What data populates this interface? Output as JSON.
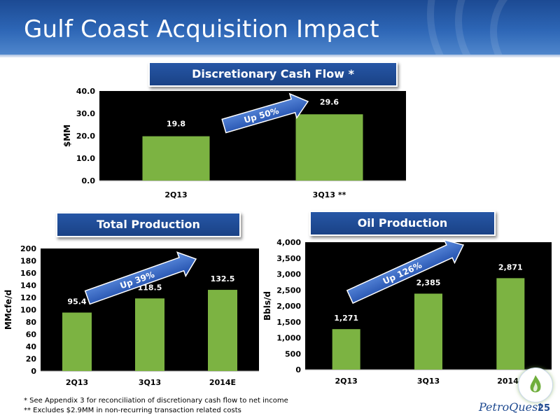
{
  "header": {
    "title": "Gulf Coast Acquisition Impact"
  },
  "sections": {
    "dcf_title": "Discretionary Cash Flow *",
    "total_title": "Total Production",
    "oil_title": "Oil Production"
  },
  "chart_data": [
    {
      "type": "bar",
      "title": "Discretionary Cash Flow *",
      "ylabel": "$MM",
      "categories": [
        "2Q13",
        "3Q13 **"
      ],
      "values": [
        19.8,
        29.6
      ],
      "value_labels": [
        "19.8",
        "29.6"
      ],
      "ylim": [
        0,
        40
      ],
      "yticks": [
        0,
        10,
        20,
        30,
        40
      ],
      "ytick_labels": [
        "0.0",
        "10.0",
        "20.0",
        "30.0",
        "40.0"
      ],
      "annotation": "Up 50%",
      "bar_color": "#7cb342",
      "grid": false
    },
    {
      "type": "bar",
      "title": "Total Production",
      "ylabel": "MMcfe/d",
      "categories": [
        "2Q13",
        "3Q13",
        "2014E"
      ],
      "values": [
        95.4,
        118.5,
        132.5
      ],
      "value_labels": [
        "95.4",
        "118.5",
        "132.5"
      ],
      "ylim": [
        0,
        200
      ],
      "yticks": [
        0,
        20,
        40,
        60,
        80,
        100,
        120,
        140,
        160,
        180,
        200
      ],
      "ytick_labels": [
        "0",
        "20",
        "40",
        "60",
        "80",
        "100",
        "120",
        "140",
        "160",
        "180",
        "200"
      ],
      "annotation": "Up 39%",
      "bar_color": "#7cb342",
      "grid": false
    },
    {
      "type": "bar",
      "title": "Oil Production",
      "ylabel": "Bbls/d",
      "categories": [
        "2Q13",
        "3Q13",
        "2014E"
      ],
      "values": [
        1271,
        2385,
        2871
      ],
      "value_labels": [
        "1,271",
        "2,385",
        "2,871"
      ],
      "ylim": [
        0,
        4000
      ],
      "yticks": [
        0,
        500,
        1000,
        1500,
        2000,
        2500,
        3000,
        3500,
        4000
      ],
      "ytick_labels": [
        "0",
        "500",
        "1,000",
        "1,500",
        "2,000",
        "2,500",
        "3,000",
        "3,500",
        "4,000"
      ],
      "annotation": "Up 126%",
      "bar_color": "#7cb342",
      "grid": false
    }
  ],
  "footnotes": {
    "note1": "*  See Appendix 3 for reconciliation of discretionary cash flow to net income",
    "note2": "** Excludes $2.9MM in non-recurring transaction related costs"
  },
  "footer": {
    "logo_text": "PetroQuest",
    "page_number": "25"
  },
  "colors": {
    "header_blue": "#2a5fae",
    "bar_green": "#7cb342",
    "arrow_blue": "#2e63c6"
  }
}
